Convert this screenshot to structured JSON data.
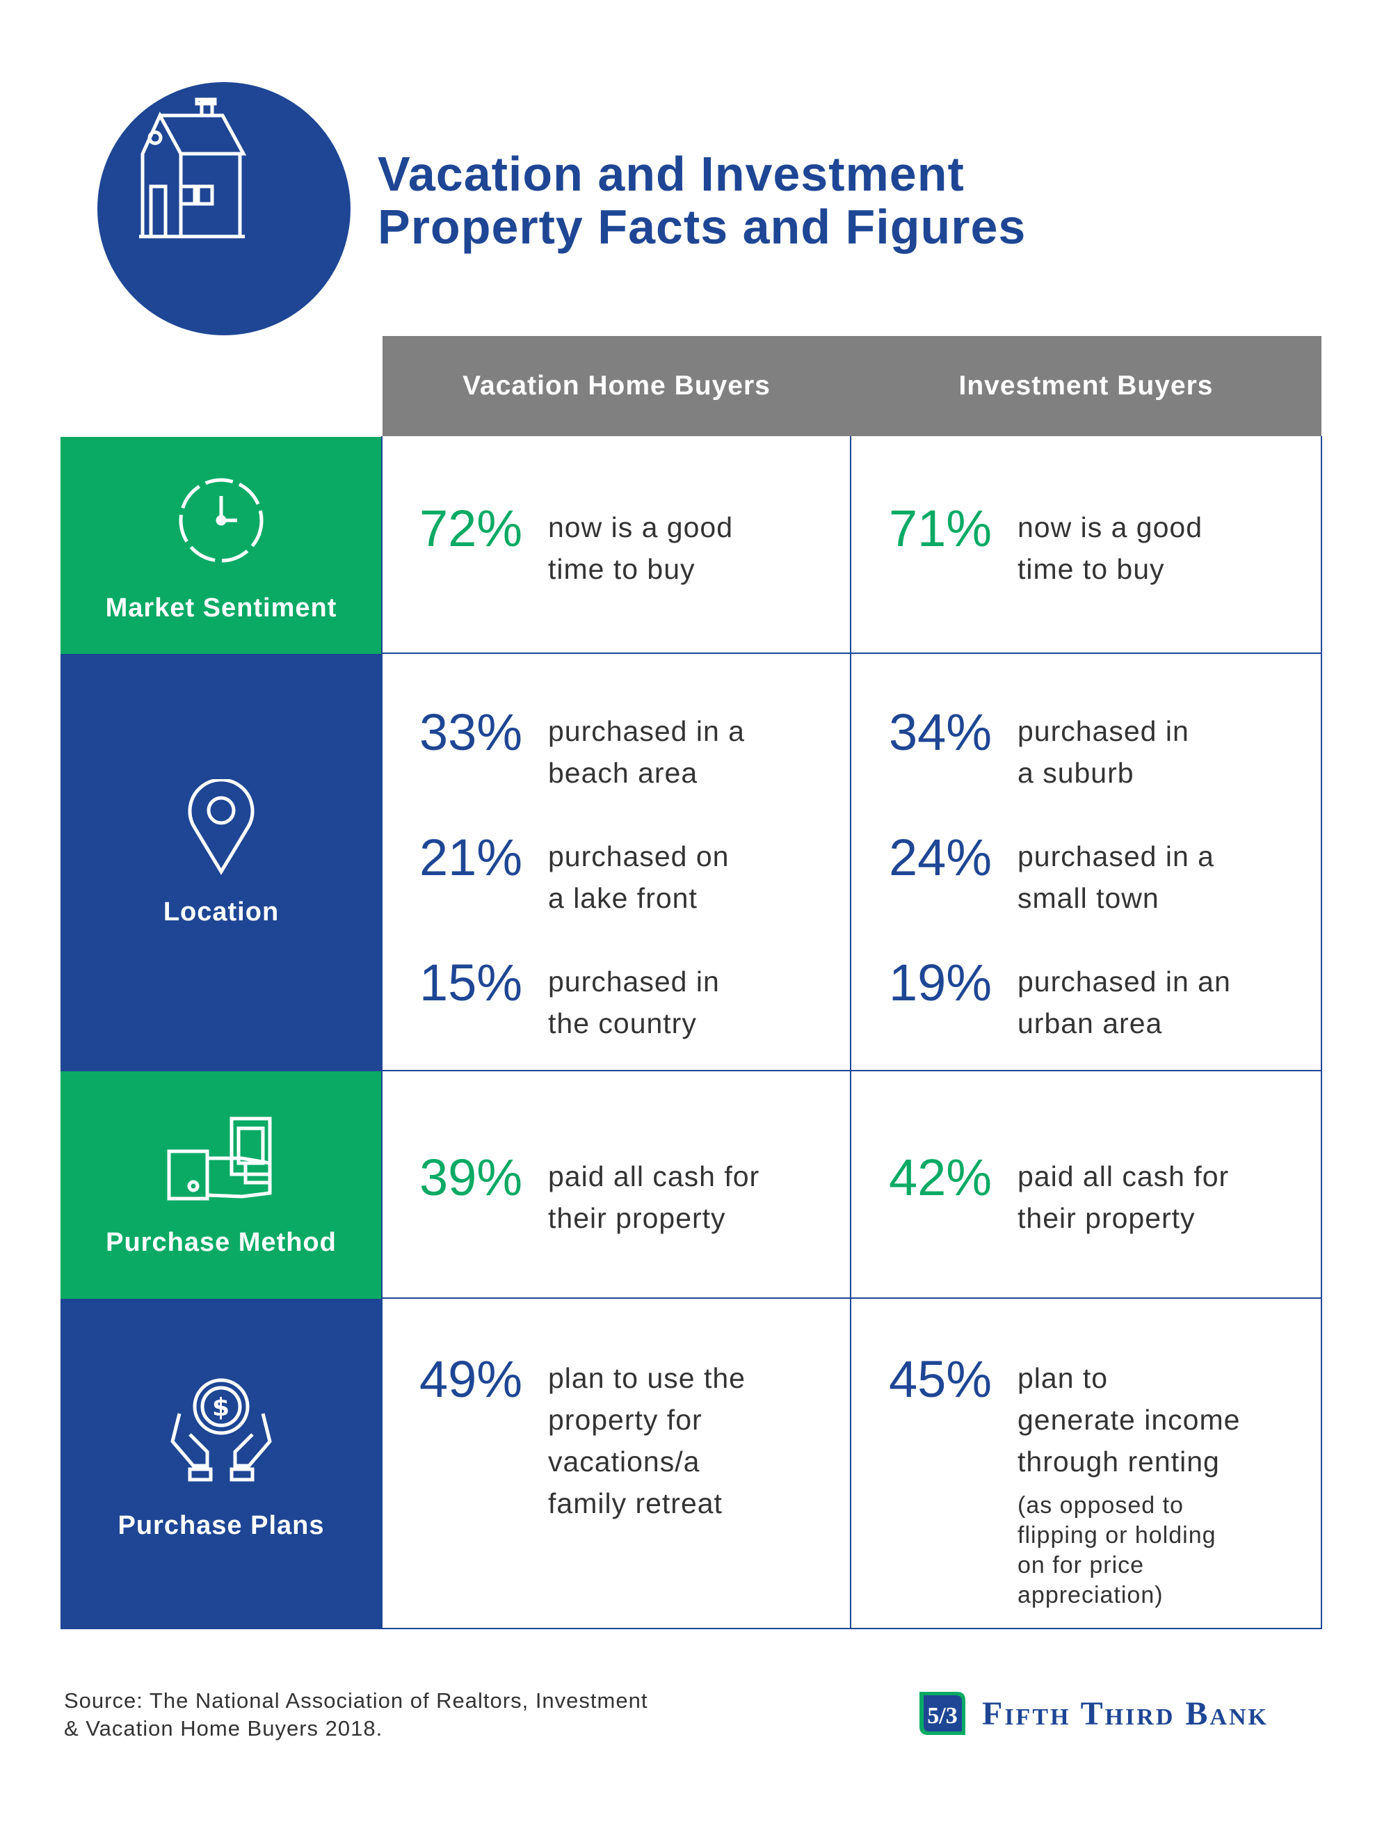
{
  "title": {
    "line1": "Vacation and Investment",
    "line2": "Property Facts and Figures"
  },
  "columns": [
    "Vacation Home Buyers",
    "Investment Buyers"
  ],
  "rows": [
    {
      "category": "Market Sentiment",
      "icon": "clock-icon",
      "color": "#0aaa64",
      "vacation": [
        {
          "pct": "72%",
          "desc1": "now is a good",
          "desc2": "time to buy"
        }
      ],
      "investment": [
        {
          "pct": "71%",
          "desc1": "now is a good",
          "desc2": "time to buy"
        }
      ]
    },
    {
      "category": "Location",
      "icon": "location-pin-icon",
      "color": "#1e4694",
      "vacation": [
        {
          "pct": "33%",
          "desc1": "purchased in a",
          "desc2": "beach area"
        },
        {
          "pct": "21%",
          "desc1": "purchased on",
          "desc2": "a lake front"
        },
        {
          "pct": "15%",
          "desc1": "purchased in",
          "desc2": "the country"
        }
      ],
      "investment": [
        {
          "pct": "34%",
          "desc1": "purchased in",
          "desc2": "a suburb"
        },
        {
          "pct": "24%",
          "desc1": "purchased in a",
          "desc2": "small town"
        },
        {
          "pct": "19%",
          "desc1": "purchased in an",
          "desc2": "urban area"
        }
      ]
    },
    {
      "category": "Purchase Method",
      "icon": "cash-hand-icon",
      "color": "#0aaa64",
      "vacation": [
        {
          "pct": "39%",
          "desc1": "paid all cash for",
          "desc2": "their property"
        }
      ],
      "investment": [
        {
          "pct": "42%",
          "desc1": "paid all cash for",
          "desc2": "their property"
        }
      ]
    },
    {
      "category": "Purchase Plans",
      "icon": "hands-coin-icon",
      "color": "#1e4694",
      "vacation": [
        {
          "pct": "49%",
          "desc1": "plan to use the",
          "desc2": "property for",
          "desc3": "vacations/a",
          "desc4": "family retreat"
        }
      ],
      "investment": [
        {
          "pct": "45%",
          "desc1": "plan to",
          "desc2": "generate income",
          "desc3": "through renting",
          "note1": "(as opposed to",
          "note2": "flipping or holding",
          "note3": "on for price",
          "note4": "appreciation)"
        }
      ]
    }
  ],
  "source": {
    "line1": "Source: The National Association of Realtors, Investment",
    "line2": "& Vacation Home Buyers 2018."
  },
  "logo": {
    "text": "Fifth Third Bank",
    "mark": "5/3"
  }
}
